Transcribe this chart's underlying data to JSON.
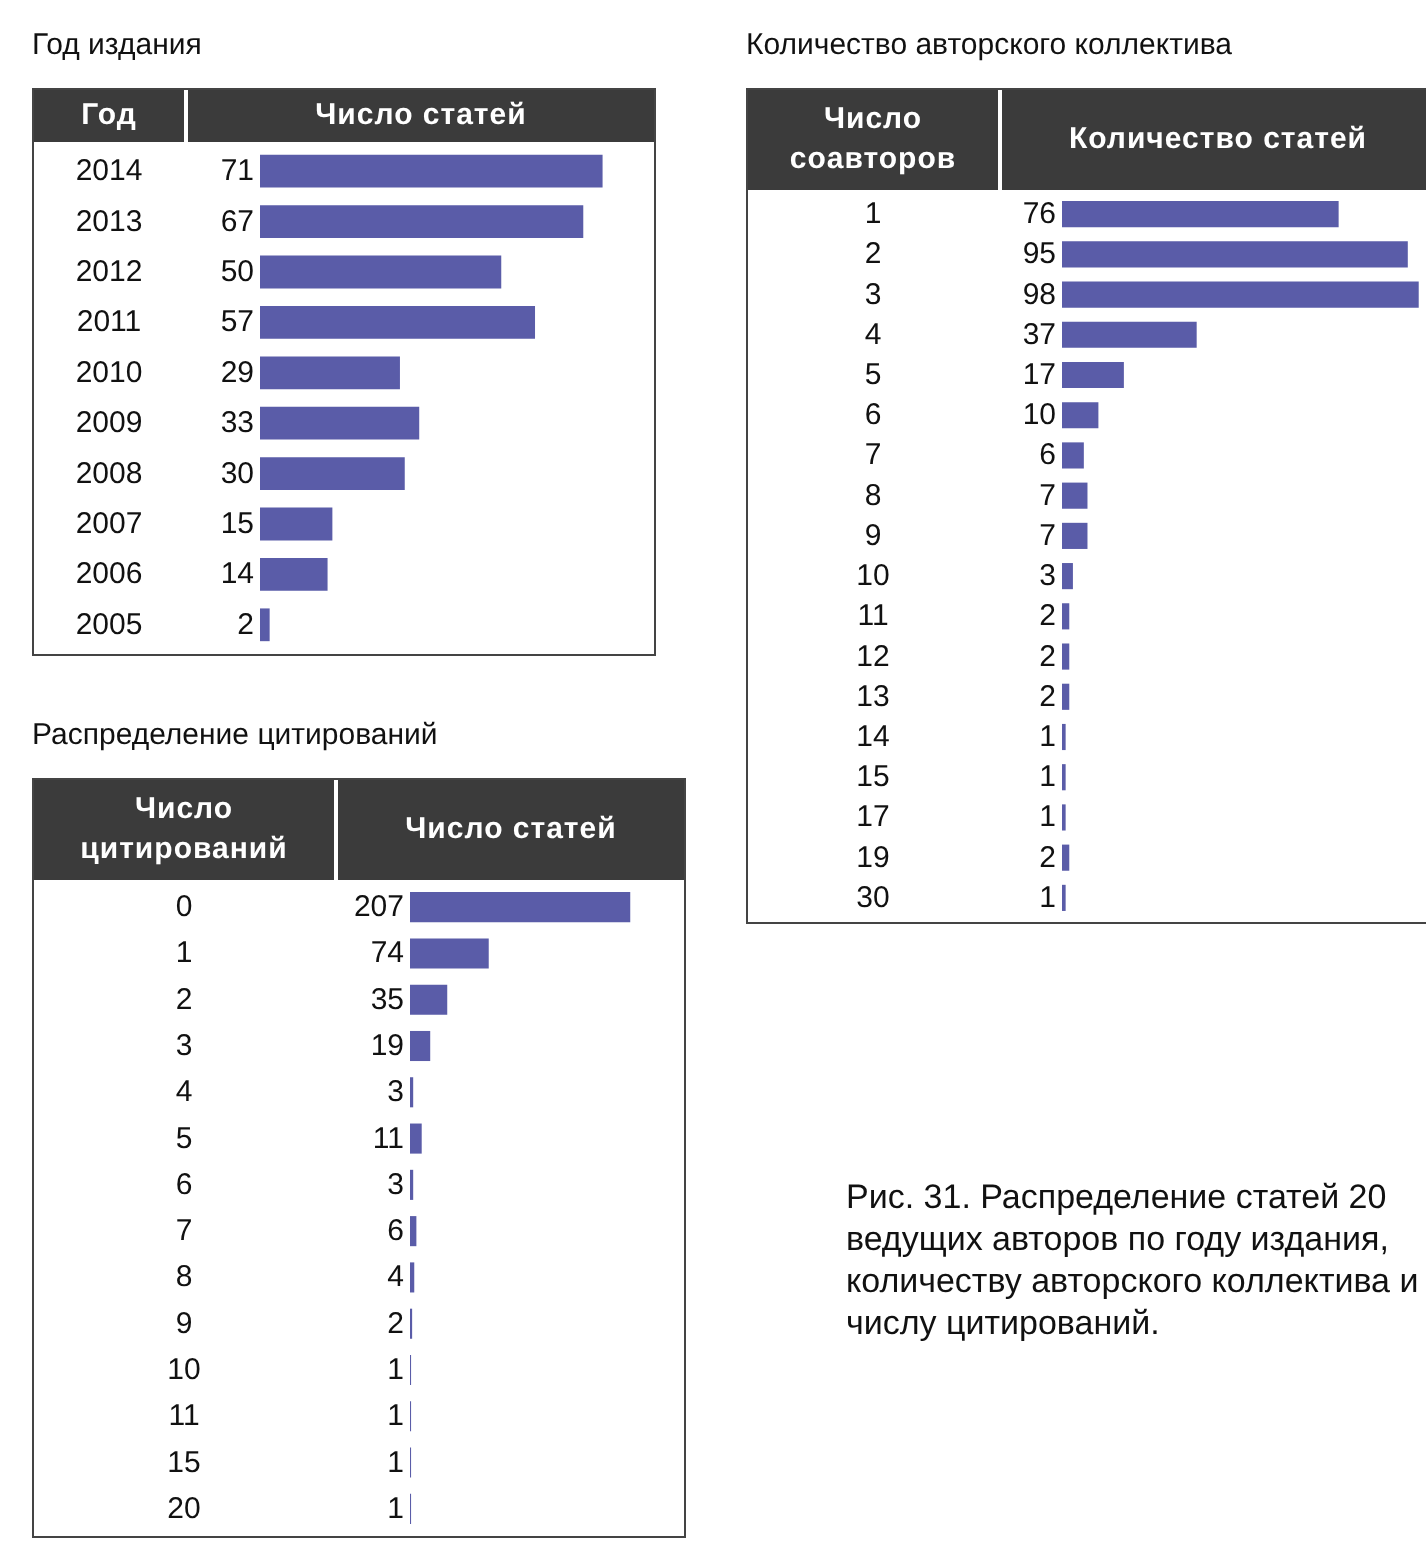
{
  "chart_data": [
    {
      "type": "bar",
      "orientation": "horizontal",
      "title": "Год издания",
      "ylabel": "Год",
      "xlabel": "Число статей",
      "categories": [
        "2014",
        "2013",
        "2012",
        "2011",
        "2010",
        "2009",
        "2008",
        "2007",
        "2006",
        "2005"
      ],
      "values": [
        71,
        67,
        50,
        57,
        29,
        33,
        30,
        15,
        14,
        2
      ],
      "color": "#5a5ca8",
      "data_labels": true
    },
    {
      "type": "bar",
      "orientation": "horizontal",
      "title": "Количество авторского коллектива",
      "ylabel": "Число соавторов",
      "xlabel": "Количество статей",
      "categories": [
        "1",
        "2",
        "3",
        "4",
        "5",
        "6",
        "7",
        "8",
        "9",
        "10",
        "11",
        "12",
        "13",
        "14",
        "15",
        "17",
        "19",
        "30"
      ],
      "values": [
        76,
        95,
        98,
        37,
        17,
        10,
        6,
        7,
        7,
        3,
        2,
        2,
        2,
        1,
        1,
        1,
        2,
        1
      ],
      "color": "#5a5ca8",
      "data_labels": true,
      "annotations": [
        "Рис. 31. Распределение статей  20 ведущих авторов по году издания, количеству авторского коллектива и числу цитирований."
      ]
    },
    {
      "type": "bar",
      "orientation": "horizontal",
      "title": "Распределение цитирований",
      "ylabel": "Число цитирований",
      "xlabel": "Число статей",
      "categories": [
        "0",
        "1",
        "2",
        "3",
        "4",
        "5",
        "6",
        "7",
        "8",
        "9",
        "10",
        "11",
        "15",
        "20"
      ],
      "values": [
        207,
        74,
        35,
        19,
        3,
        11,
        3,
        6,
        4,
        2,
        1,
        1,
        1,
        1
      ],
      "color": "#5a5ca8",
      "data_labels": true
    }
  ]
}
